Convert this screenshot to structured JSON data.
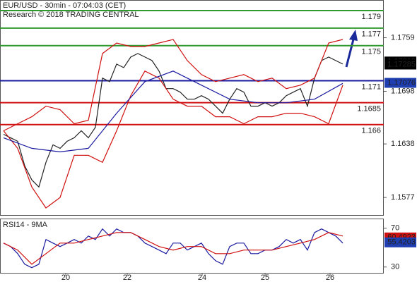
{
  "header": {
    "title": "EUR/USD - 30min - 07:04:03 (CET)",
    "subtitle": "Research © 2018 TRADING CENTRAL"
  },
  "chart_data": [
    {
      "type": "line",
      "xlim": [
        0,
        271.5
      ],
      "xticks": [
        {
          "value": 46.5,
          "label": "20"
        },
        {
          "value": 90,
          "label": "22"
        },
        {
          "value": 143,
          "label": "24"
        },
        {
          "value": 187.5,
          "label": "25"
        },
        {
          "value": 233.5,
          "label": "26"
        }
      ],
      "ylim": [
        1.1557,
        1.1802
      ],
      "yticks": [
        1.1759,
        1.1698,
        1.1638,
        1.1577
      ],
      "levels": [
        {
          "value": 1.179,
          "color": "#2e9a2e"
        },
        {
          "value": 1.177,
          "color": "#2e9a2e"
        },
        {
          "value": 1.175,
          "color": "#2e9a2e"
        },
        {
          "value": 1.171,
          "color": "#1a1aa0"
        },
        {
          "value": 1.1685,
          "color": "#d01010"
        },
        {
          "value": 1.166,
          "color": "#d01010"
        }
      ],
      "tags": [
        {
          "value": 1.17319,
          "color": "#000000"
        },
        {
          "value": 1.17285,
          "color": "#000000"
        },
        {
          "value": 1.17076,
          "color": "#1f3fb0"
        }
      ],
      "series": [
        {
          "color": "#222222",
          "x": [
            2.5,
            7.5,
            12.5,
            17.5,
            22.5,
            27.5,
            32.5,
            37.5,
            42.5,
            47.5,
            52.5,
            57.5,
            62.5,
            67.5,
            72.5,
            77.5,
            82.5,
            87.5,
            92.5,
            97.5,
            102.5,
            107.5,
            112.5,
            117.5,
            122.5,
            127.5,
            132.5,
            137.5,
            142.5,
            147.5,
            152.5,
            157.5,
            162.5,
            167.5,
            172.5,
            177.5,
            182.5,
            187.5,
            192.5,
            197.5,
            202.5,
            207.5,
            212.5,
            217.5,
            222.5,
            227.5,
            232.5,
            237.5,
            242.5
          ],
          "values": [
            1.1649,
            1.1645,
            1.1641,
            1.1613,
            1.1597,
            1.1589,
            1.1617,
            1.1637,
            1.1633,
            1.1641,
            1.1645,
            1.1653,
            1.1645,
            1.1657,
            1.1713,
            1.1709,
            1.1729,
            1.1725,
            1.1737,
            1.1741,
            1.1737,
            1.1733,
            1.1721,
            1.1701,
            1.1701,
            1.1697,
            1.1689,
            1.1689,
            1.1693,
            1.1689,
            1.1681,
            1.1673,
            1.1689,
            1.1701,
            1.1697,
            1.1681,
            1.1681,
            1.1685,
            1.1681,
            1.1685,
            1.1693,
            1.1697,
            1.1701,
            1.1681,
            1.1713,
            1.1733,
            1.1737,
            1.1733,
            1.1729
          ]
        },
        {
          "color": "#d01010",
          "x": [
            2.5,
            12.5,
            22.5,
            32.5,
            42.5,
            52.5,
            62.5,
            72.5,
            82.5,
            92.5,
            102.5,
            112.5,
            122.5,
            132.5,
            142.5,
            152.5,
            162.5,
            172.5,
            182.5,
            192.5,
            202.5,
            212.5,
            222.5,
            232.5,
            242.5
          ],
          "values": [
            1.1653,
            1.1661,
            1.1669,
            1.1681,
            1.1677,
            1.1661,
            1.1665,
            1.1741,
            1.1753,
            1.1749,
            1.1749,
            1.1753,
            1.1757,
            1.1733,
            1.1717,
            1.1709,
            1.1713,
            1.1717,
            1.1709,
            1.1713,
            1.1701,
            1.1705,
            1.1713,
            1.1753,
            1.1757
          ]
        },
        {
          "color": "#d01010",
          "x": [
            2.5,
            12.5,
            22.5,
            32.5,
            42.5,
            52.5,
            62.5,
            72.5,
            82.5,
            92.5,
            102.5,
            112.5,
            122.5,
            132.5,
            142.5,
            152.5,
            162.5,
            172.5,
            182.5,
            192.5,
            202.5,
            212.5,
            222.5,
            232.5,
            242.5
          ],
          "values": [
            1.1653,
            1.1633,
            1.1589,
            1.1565,
            1.1577,
            1.1625,
            1.1625,
            1.1617,
            1.1653,
            1.1693,
            1.1721,
            1.1713,
            1.1689,
            1.1681,
            1.1681,
            1.1669,
            1.1669,
            1.1661,
            1.1669,
            1.1669,
            1.1673,
            1.1673,
            1.1669,
            1.1661,
            1.1705
          ]
        },
        {
          "color": "#1a1aa0",
          "x": [
            2.5,
            22.5,
            42.5,
            62.5,
            82.5,
            102.5,
            122.5,
            142.5,
            162.5,
            182.5,
            202.5,
            222.5,
            242.5
          ],
          "values": [
            1.1645,
            1.1633,
            1.1629,
            1.1633,
            1.1673,
            1.1709,
            1.1721,
            1.1705,
            1.1689,
            1.1685,
            1.1685,
            1.1689,
            1.1707
          ]
        }
      ]
    },
    {
      "type": "line",
      "title": "RSI14 - 9MA",
      "xlim": [
        0,
        271.5
      ],
      "ylim": [
        24,
        80
      ],
      "yticks": [
        70,
        30
      ],
      "tags": [
        {
          "value": 60.4923,
          "color": "#d01010"
        },
        {
          "value": 55.4203,
          "color": "#1f3fb0"
        }
      ],
      "series": [
        {
          "color": "#1a1aa0",
          "x": [
            2.5,
            7.5,
            12.5,
            17.5,
            22.5,
            27.5,
            32.5,
            37.5,
            42.5,
            47.5,
            52.5,
            57.5,
            62.5,
            67.5,
            72.5,
            77.5,
            82.5,
            87.5,
            92.5,
            97.5,
            102.5,
            107.5,
            112.5,
            117.5,
            122.5,
            127.5,
            132.5,
            137.5,
            142.5,
            147.5,
            152.5,
            157.5,
            162.5,
            167.5,
            172.5,
            177.5,
            182.5,
            187.5,
            192.5,
            197.5,
            202.5,
            207.5,
            212.5,
            217.5,
            222.5,
            227.5,
            232.5,
            237.5,
            242.5
          ],
          "values": [
            54.7,
            51.1,
            43.8,
            32.9,
            29.3,
            32.9,
            58.4,
            54.7,
            51.1,
            54.7,
            58.4,
            54.7,
            62,
            58.4,
            69.3,
            62,
            69.3,
            65.6,
            65.6,
            62,
            54.7,
            51.1,
            47.5,
            43.8,
            54.7,
            54.7,
            47.5,
            51.1,
            54.7,
            43.8,
            36.5,
            32.9,
            51.1,
            54.7,
            54.7,
            43.8,
            43.8,
            47.5,
            47.5,
            51.1,
            58.4,
            54.7,
            58.4,
            47.5,
            65.6,
            69.3,
            65.6,
            62,
            54.7
          ]
        },
        {
          "color": "#d01010",
          "x": [
            2.5,
            12.5,
            22.5,
            32.5,
            42.5,
            52.5,
            62.5,
            72.5,
            82.5,
            92.5,
            102.5,
            112.5,
            122.5,
            132.5,
            142.5,
            152.5,
            162.5,
            172.5,
            182.5,
            192.5,
            202.5,
            212.5,
            222.5,
            232.5,
            242.5
          ],
          "values": [
            54.7,
            47.5,
            32.9,
            43.8,
            54.7,
            54.7,
            58.4,
            62,
            65.6,
            65.6,
            58.4,
            51.1,
            47.5,
            51.1,
            51.1,
            43.8,
            43.8,
            47.5,
            47.5,
            47.5,
            51.1,
            54.7,
            58.4,
            65.6,
            62
          ]
        }
      ]
    }
  ]
}
